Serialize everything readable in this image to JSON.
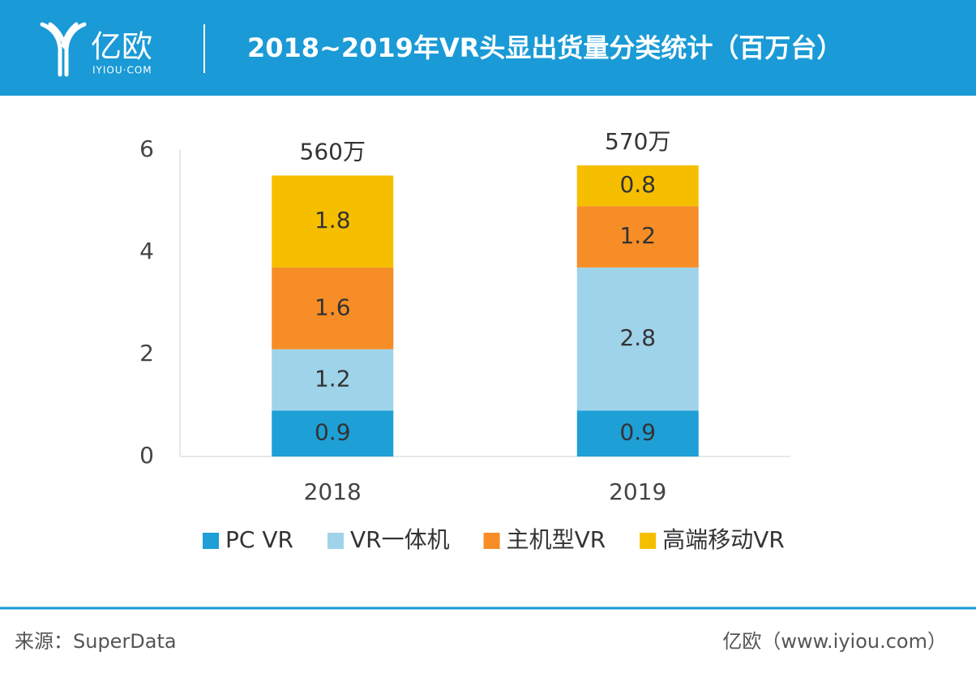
{
  "header": {
    "logo": "亿欧",
    "logo_sub": "IYIOU·COM"
  },
  "chart_data": {
    "type": "stacked_bar",
    "title": "2018~2019年VR头显出货量分类统计（百万台）",
    "categories": [
      "2018",
      "2019"
    ],
    "series": [
      {
        "name": "PC VR",
        "color": "#1e9fd6",
        "values": [
          0.9,
          0.9
        ]
      },
      {
        "name": "VR一体机",
        "color": "#9fd3ea",
        "values": [
          1.2,
          2.8
        ]
      },
      {
        "name": "主机型VR",
        "color": "#f68d26",
        "values": [
          1.6,
          1.2
        ]
      },
      {
        "name": "高端移动VR",
        "color": "#f5bf00",
        "values": [
          1.8,
          0.8
        ]
      }
    ],
    "annotations": [
      "560万",
      "570万"
    ],
    "ylim": [
      0,
      6
    ],
    "yticks": [
      0,
      2,
      4,
      6
    ],
    "grid": false,
    "legend": "bottom"
  },
  "footer": {
    "source": "来源：SuperData",
    "credit": "亿欧（www.iyiou.com）"
  }
}
